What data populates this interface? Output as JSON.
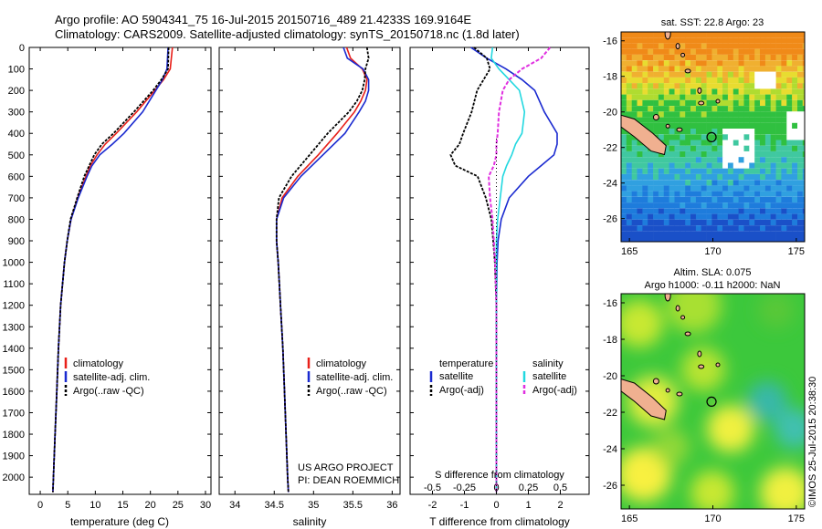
{
  "title_line1": "Argo profile: AO 5904341_75 16-Jul-2015 20150716_489 21.4233S 169.9164E",
  "title_line2": "Climatology: CARS2009. Satellite-adjusted climatology: synTS_20150718.nc (1.8d later)",
  "project_line1": "US ARGO PROJECT",
  "project_line2": "PI: DEAN ROEMMICH",
  "stamp": "©IMOS 25-Jul-2015 20:38:30",
  "colors": {
    "clim": "#e8201a",
    "sat": "#1a2ad0",
    "argo": "#000000",
    "sal_sat": "#22d8e0",
    "sal_argo": "#e030e0",
    "land": "#f0b090"
  },
  "chart_data": [
    {
      "type": "line",
      "id": "temp",
      "xlabel": "temperature (deg C)",
      "xticks": [
        "0",
        "5",
        "10",
        "15",
        "20",
        "25",
        "30"
      ],
      "xlim": [
        -2,
        31
      ],
      "ylim": [
        2080,
        0
      ],
      "yticks": [
        "0",
        "100",
        "200",
        "300",
        "400",
        "500",
        "600",
        "700",
        "800",
        "900",
        "1000",
        "1100",
        "1200",
        "1300",
        "1400",
        "1500",
        "1600",
        "1700",
        "1800",
        "1900",
        "2000"
      ],
      "legend": [
        "climatology",
        "satellite-adj. clim.",
        "Argo(..raw -QC)"
      ],
      "depth": [
        0,
        100,
        150,
        200,
        300,
        400,
        450,
        500,
        550,
        600,
        700,
        800,
        900,
        1000,
        1200,
        1400,
        1600,
        1800,
        2000,
        2070
      ],
      "series": [
        {
          "name": "climatology",
          "values": [
            24.0,
            23.6,
            22.4,
            20.8,
            17.5,
            13.8,
            11.8,
            10.3,
            9.1,
            8.3,
            6.8,
            5.6,
            4.9,
            4.4,
            3.7,
            3.3,
            3.0,
            2.7,
            2.4,
            2.3
          ]
        },
        {
          "name": "satellite-adj. clim.",
          "values": [
            23.2,
            23.0,
            22.2,
            21.0,
            18.6,
            15.2,
            13.1,
            10.8,
            9.4,
            8.5,
            6.9,
            5.6,
            4.9,
            4.4,
            3.7,
            3.3,
            3.0,
            2.7,
            2.4,
            2.3
          ]
        },
        {
          "name": "Argo(..raw -QC)",
          "values": [
            23.3,
            23.2,
            22.0,
            20.5,
            17.0,
            13.3,
            11.2,
            9.8,
            8.9,
            8.0,
            6.7,
            5.5,
            4.9,
            4.4,
            3.7,
            3.3,
            3.0,
            2.7,
            2.4,
            2.3
          ]
        }
      ]
    },
    {
      "type": "line",
      "id": "sal",
      "xlabel": "salinity",
      "xticks": [
        "34",
        "34.5",
        "35",
        "35.5",
        "36"
      ],
      "xlim": [
        33.8,
        36.1
      ],
      "ylim": [
        2080,
        0
      ],
      "legend": [
        "climatology",
        "satellite-adj. clim.",
        "Argo(..raw -QC)"
      ],
      "depth": [
        0,
        50,
        100,
        150,
        200,
        250,
        300,
        400,
        500,
        600,
        700,
        800,
        900,
        1000,
        1200,
        1400,
        1600,
        1800,
        2000,
        2070
      ],
      "series": [
        {
          "name": "climatology",
          "values": [
            35.42,
            35.47,
            35.62,
            35.68,
            35.66,
            35.6,
            35.52,
            35.3,
            35.06,
            34.8,
            34.6,
            34.53,
            34.53,
            34.55,
            34.58,
            34.61,
            34.63,
            34.65,
            34.67,
            34.68
          ]
        },
        {
          "name": "satellite-adj. clim.",
          "values": [
            35.38,
            35.43,
            35.63,
            35.7,
            35.7,
            35.66,
            35.58,
            35.4,
            35.12,
            34.84,
            34.62,
            34.53,
            34.53,
            34.55,
            34.58,
            34.61,
            34.63,
            34.65,
            34.67,
            34.68
          ]
        },
        {
          "name": "Argo(..raw -QC)",
          "values": [
            35.68,
            35.7,
            35.66,
            35.65,
            35.62,
            35.55,
            35.45,
            35.18,
            34.95,
            34.72,
            34.56,
            34.53,
            34.53,
            34.55,
            34.58,
            34.61,
            34.63,
            34.65,
            34.67,
            34.68
          ]
        }
      ]
    },
    {
      "type": "line",
      "id": "diff",
      "xlabel": "T difference from climatology",
      "xlabel_top": "S difference from climatology",
      "xticks": [
        "-2",
        "-1",
        "0",
        "1",
        "2"
      ],
      "xticks_top": [
        "-0.5",
        "-0.25",
        "0",
        "0.25",
        "0.5"
      ],
      "xlim": [
        -2.7,
        2.9
      ],
      "ylim": [
        2080,
        0
      ],
      "legend_titles": [
        "temperature",
        "salinity"
      ],
      "legend": [
        "satellite",
        "Argo(-adj)",
        "satellite",
        "Argo(-adj)"
      ],
      "depth": [
        0,
        50,
        100,
        150,
        200,
        300,
        400,
        450,
        500,
        550,
        600,
        700,
        800,
        900,
        1000,
        1200,
        1600,
        2070
      ],
      "series": [
        {
          "name": "T satellite",
          "values": [
            -0.8,
            -0.3,
            0.3,
            0.8,
            1.2,
            1.5,
            1.9,
            1.9,
            1.8,
            1.4,
            1.0,
            0.4,
            0.15,
            0.05,
            0.02,
            0.0,
            0.0,
            0.0
          ]
        },
        {
          "name": "T Argo(-adj)",
          "values": [
            -0.7,
            -0.3,
            -0.2,
            -0.4,
            -0.6,
            -0.8,
            -1.0,
            -1.2,
            -1.4,
            -1.3,
            -0.6,
            -0.3,
            -0.2,
            -0.1,
            -0.05,
            0.0,
            0.0,
            0.0
          ]
        },
        {
          "name": "S satellite",
          "values": [
            -0.03,
            -0.04,
            0.02,
            0.1,
            0.18,
            0.22,
            0.2,
            0.15,
            0.12,
            0.08,
            0.05,
            0.03,
            0.01,
            0.0,
            0.0,
            0.0,
            0.0,
            0.0
          ]
        },
        {
          "name": "S Argo(-adj)",
          "values": [
            0.42,
            0.35,
            0.2,
            0.1,
            0.05,
            0.02,
            0.01,
            0.0,
            0.0,
            -0.02,
            -0.06,
            -0.05,
            -0.03,
            -0.02,
            -0.01,
            0.0,
            0.0,
            0.0
          ]
        }
      ]
    },
    {
      "type": "heatmap",
      "id": "sst",
      "title": "sat. SST: 22.8 Argo: 23",
      "xticks": [
        "165",
        "170",
        "175"
      ],
      "yticks": [
        "-16",
        "-18",
        "-20",
        "-22",
        "-24",
        "-26"
      ],
      "xlim": [
        164.5,
        175.5
      ],
      "ylim": [
        -27.3,
        -15.5
      ],
      "marker": [
        169.92,
        -21.42
      ]
    },
    {
      "type": "heatmap",
      "id": "sla",
      "title": "Altim. SLA: 0.075",
      "subtitle": "Argo h1000: -0.11 h2000: NaN",
      "xticks": [
        "165",
        "170",
        "175"
      ],
      "yticks": [
        "-16",
        "-18",
        "-20",
        "-22",
        "-24",
        "-26"
      ],
      "xlim": [
        164.5,
        175.5
      ],
      "ylim": [
        -27.3,
        -15.5
      ],
      "marker": [
        169.92,
        -21.42
      ]
    }
  ]
}
